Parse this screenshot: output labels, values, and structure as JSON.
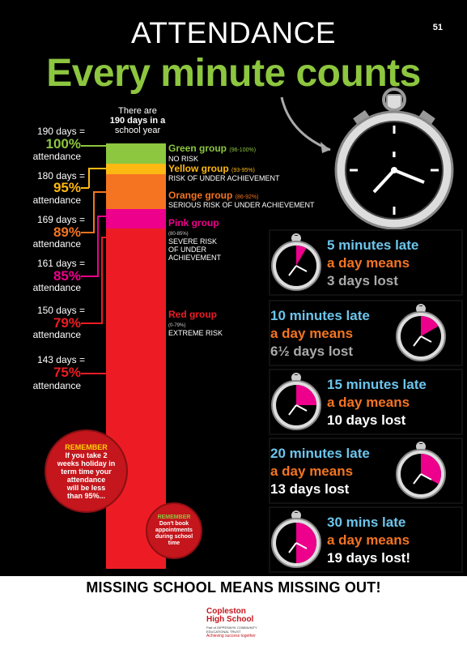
{
  "page_number": "51",
  "title_top": "ATTENDANCE",
  "title_main": "Every minute counts",
  "bar_caption": [
    "There are",
    "190 days in a",
    "school year"
  ],
  "levels": [
    {
      "days": "190 days =",
      "pct": "100%",
      "att": "attendance",
      "color": "#8dc63f"
    },
    {
      "days": "180 days =",
      "pct": "95%",
      "att": "attendance",
      "color": "#fdb913"
    },
    {
      "days": "169 days =",
      "pct": "89%",
      "att": "attendance",
      "color": "#f47421"
    },
    {
      "days": "161 days =",
      "pct": "85%",
      "att": "attendance",
      "color": "#ec008c"
    },
    {
      "days": "150 days =",
      "pct": "79%",
      "att": "attendance",
      "color": "#ed1c24"
    },
    {
      "days": "143 days =",
      "pct": "75%",
      "att": "attendance",
      "color": "#ed1c24"
    }
  ],
  "groups": [
    {
      "name": "Green group",
      "range": "(96-100%)",
      "risk": [
        "NO RISK"
      ],
      "color": "#8dc63f"
    },
    {
      "name": "Yellow group",
      "range": "(93-95%)",
      "risk": [
        "RISK OF UNDER ACHIEVEMENT"
      ],
      "color": "#fdb913"
    },
    {
      "name": "Orange group",
      "range": "(86-92%)",
      "risk": [
        "SERIOUS RISK OF UNDER ACHIEVEMENT"
      ],
      "color": "#f47421"
    },
    {
      "name": "Pink group",
      "range": "(80-85%)",
      "risk": [
        "SEVERE RISK",
        "OF UNDER",
        "ACHIEVEMENT"
      ],
      "color": "#ec008c"
    },
    {
      "name": "Red group",
      "range": "(0-79%)",
      "risk": [
        "EXTREME RISK"
      ],
      "color": "#ed1c24"
    }
  ],
  "remember1": {
    "head": "REMEMBER",
    "lines": [
      "If you take 2",
      "weeks holiday in",
      "term time your",
      "attendance",
      "will be less",
      "than 95%..."
    ]
  },
  "remember2": {
    "head": "REMEMBER",
    "lines": [
      "Don't book",
      "appointments",
      "during school",
      "time"
    ]
  },
  "tiles": [
    {
      "l1": "5 minutes late",
      "l2": "a day means",
      "l3": "3 days lost",
      "l3_color": "#aaaaaa",
      "late_fraction": 0.0833
    },
    {
      "l1": "10 minutes late",
      "l2": "a day means",
      "l3": "6½ days lost",
      "l3_color": "#aaaaaa",
      "late_fraction": 0.1667
    },
    {
      "l1": "15 minutes late",
      "l2": "a day means",
      "l3": "10 days lost",
      "l3_color": "#ffffff",
      "late_fraction": 0.25
    },
    {
      "l1": "20 minutes late",
      "l2": "a day means",
      "l3": "13 days lost",
      "l3_color": "#ffffff",
      "late_fraction": 0.3333
    },
    {
      "l1": "30 mins late",
      "l2": "a day means",
      "l3": "19 days lost!",
      "l3_color": "#ffffff",
      "late_fraction": 0.5
    }
  ],
  "colors": {
    "pink": "#ec008c",
    "blue": "#6cc5ec",
    "orange": "#f47421",
    "green": "#8dc63f"
  },
  "footer": "MISSING SCHOOL MEANS MISSING OUT!",
  "logo": {
    "line1": "Copleston",
    "line2": "High School",
    "line3": "Part of GIPPESWYK COMMUNITY EDUCATIONAL TRUST",
    "line4": "Achieving success together"
  }
}
